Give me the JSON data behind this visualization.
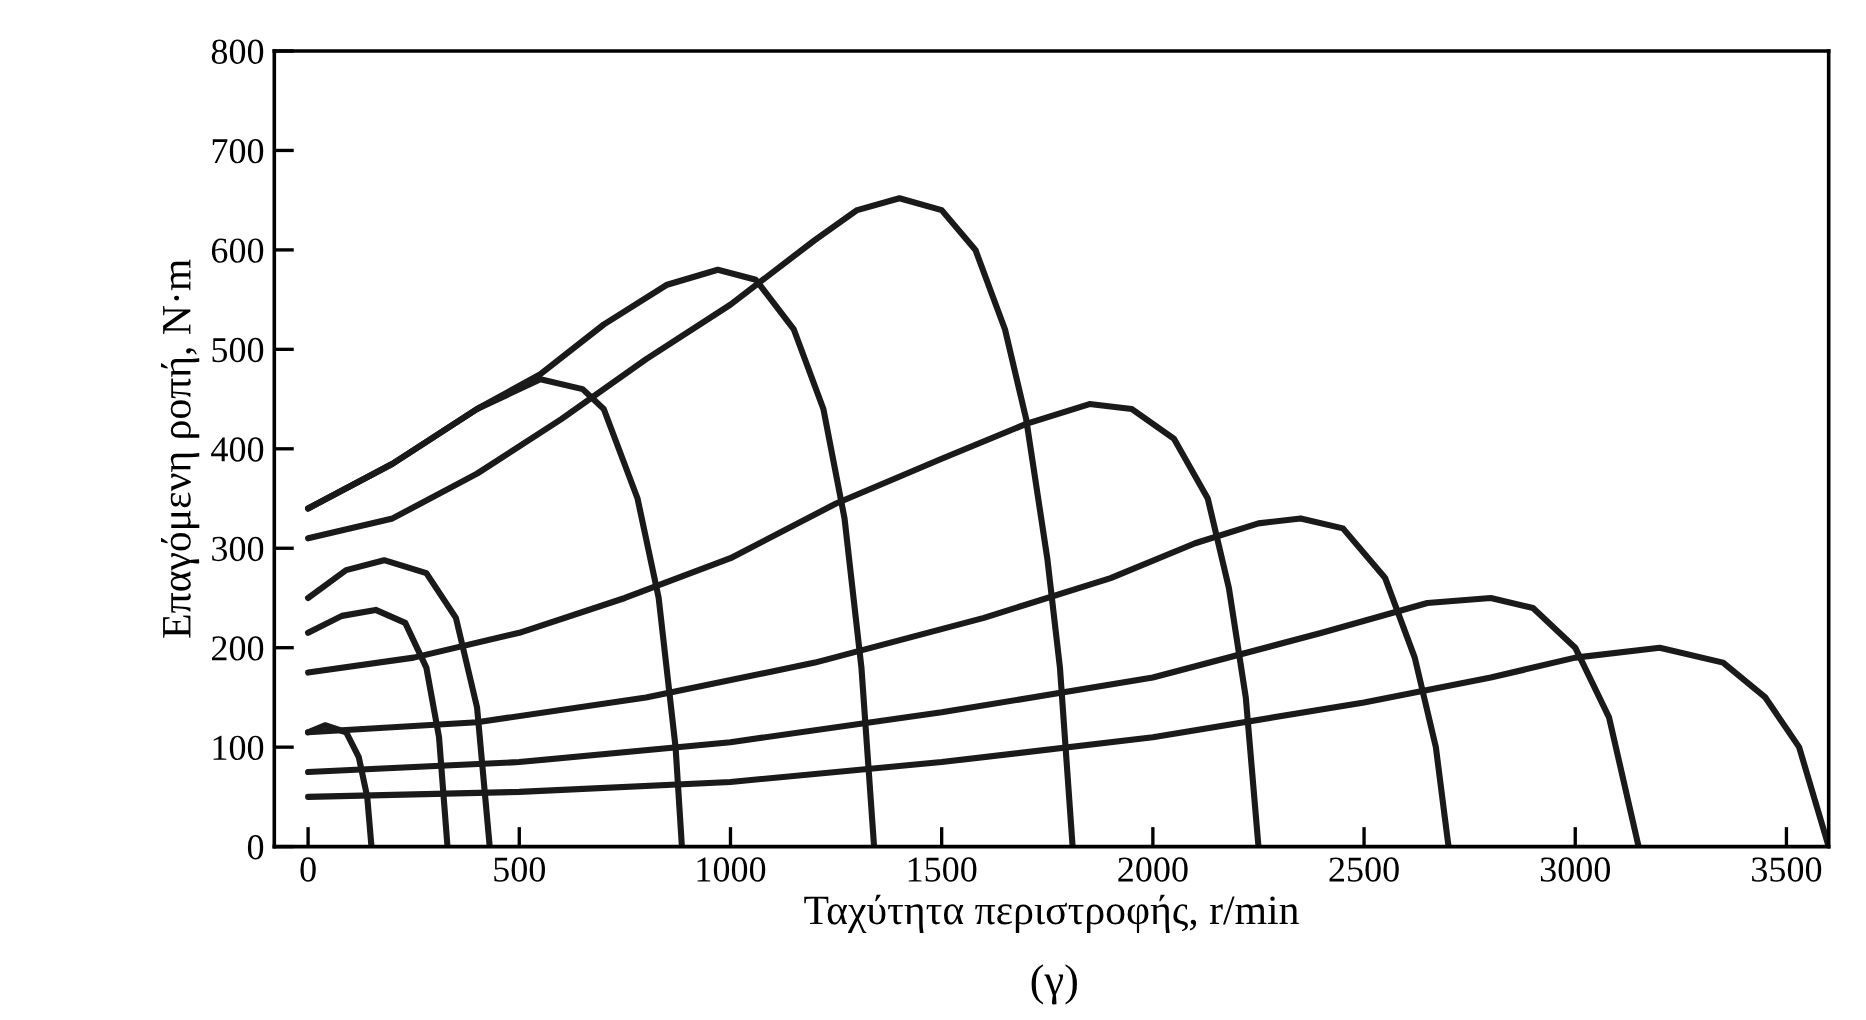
{
  "chart_data": {
    "type": "line",
    "xlabel": "Ταχύτητα περιστροφής, r/min",
    "ylabel": "Επαγόμενη ροπή, N·m",
    "annotations": [
      "(γ)"
    ],
    "xlim": [
      -80,
      3600
    ],
    "ylim": [
      0,
      800
    ],
    "xticks": [
      0,
      500,
      1000,
      1500,
      2000,
      2500,
      3000,
      3500
    ],
    "yticks": [
      0,
      100,
      200,
      300,
      400,
      500,
      600,
      700,
      800
    ],
    "grid": false,
    "marker": "none",
    "line_style": "solid",
    "series": [
      {
        "color": "#1a1a1a",
        "x": [
          0,
          40,
          90,
          120,
          140,
          150
        ],
        "values": [
          115,
          122,
          115,
          90,
          50,
          0
        ]
      },
      {
        "color": "#1a1a1a",
        "x": [
          0,
          80,
          160,
          230,
          280,
          310,
          330
        ],
        "values": [
          215,
          232,
          238,
          225,
          180,
          110,
          0
        ]
      },
      {
        "color": "#1a1a1a",
        "x": [
          0,
          90,
          180,
          280,
          350,
          400,
          430
        ],
        "values": [
          250,
          278,
          288,
          275,
          230,
          140,
          0
        ]
      },
      {
        "color": "#1a1a1a",
        "x": [
          0,
          200,
          400,
          550,
          650,
          700,
          780,
          830,
          870,
          885
        ],
        "values": [
          340,
          385,
          440,
          470,
          460,
          440,
          350,
          250,
          100,
          0
        ]
      },
      {
        "color": "#1a1a1a",
        "x": [
          0,
          200,
          400,
          550,
          700,
          850,
          970,
          1060,
          1150,
          1220,
          1270,
          1310,
          1340
        ],
        "values": [
          340,
          385,
          440,
          475,
          525,
          565,
          580,
          570,
          520,
          440,
          330,
          180,
          0
        ]
      },
      {
        "color": "#1a1a1a",
        "x": [
          0,
          200,
          400,
          600,
          800,
          1000,
          1200,
          1300,
          1400,
          1500,
          1580,
          1650,
          1700,
          1750,
          1780,
          1810
        ],
        "values": [
          310,
          330,
          375,
          430,
          490,
          545,
          610,
          640,
          652,
          640,
          600,
          520,
          430,
          290,
          180,
          0
        ]
      },
      {
        "color": "#1a1a1a",
        "x": [
          0,
          250,
          500,
          750,
          1000,
          1250,
          1500,
          1700,
          1850,
          1950,
          2050,
          2130,
          2180,
          2220,
          2250
        ],
        "values": [
          175,
          190,
          215,
          250,
          290,
          345,
          390,
          425,
          445,
          440,
          410,
          350,
          260,
          150,
          0
        ]
      },
      {
        "color": "#1a1a1a",
        "x": [
          0,
          400,
          800,
          1200,
          1600,
          1900,
          2100,
          2250,
          2350,
          2450,
          2550,
          2620,
          2670,
          2700
        ],
        "values": [
          115,
          125,
          150,
          185,
          230,
          270,
          305,
          325,
          330,
          320,
          270,
          190,
          100,
          0
        ]
      },
      {
        "color": "#1a1a1a",
        "x": [
          0,
          500,
          1000,
          1500,
          2000,
          2400,
          2650,
          2800,
          2900,
          3000,
          3080,
          3150
        ],
        "values": [
          75,
          85,
          105,
          135,
          170,
          215,
          245,
          250,
          240,
          200,
          130,
          0
        ]
      },
      {
        "color": "#1a1a1a",
        "x": [
          0,
          500,
          1000,
          1500,
          2000,
          2500,
          2800,
          3000,
          3200,
          3350,
          3450,
          3530,
          3600
        ],
        "values": [
          50,
          55,
          65,
          85,
          110,
          145,
          170,
          190,
          200,
          185,
          150,
          100,
          0
        ]
      }
    ]
  }
}
